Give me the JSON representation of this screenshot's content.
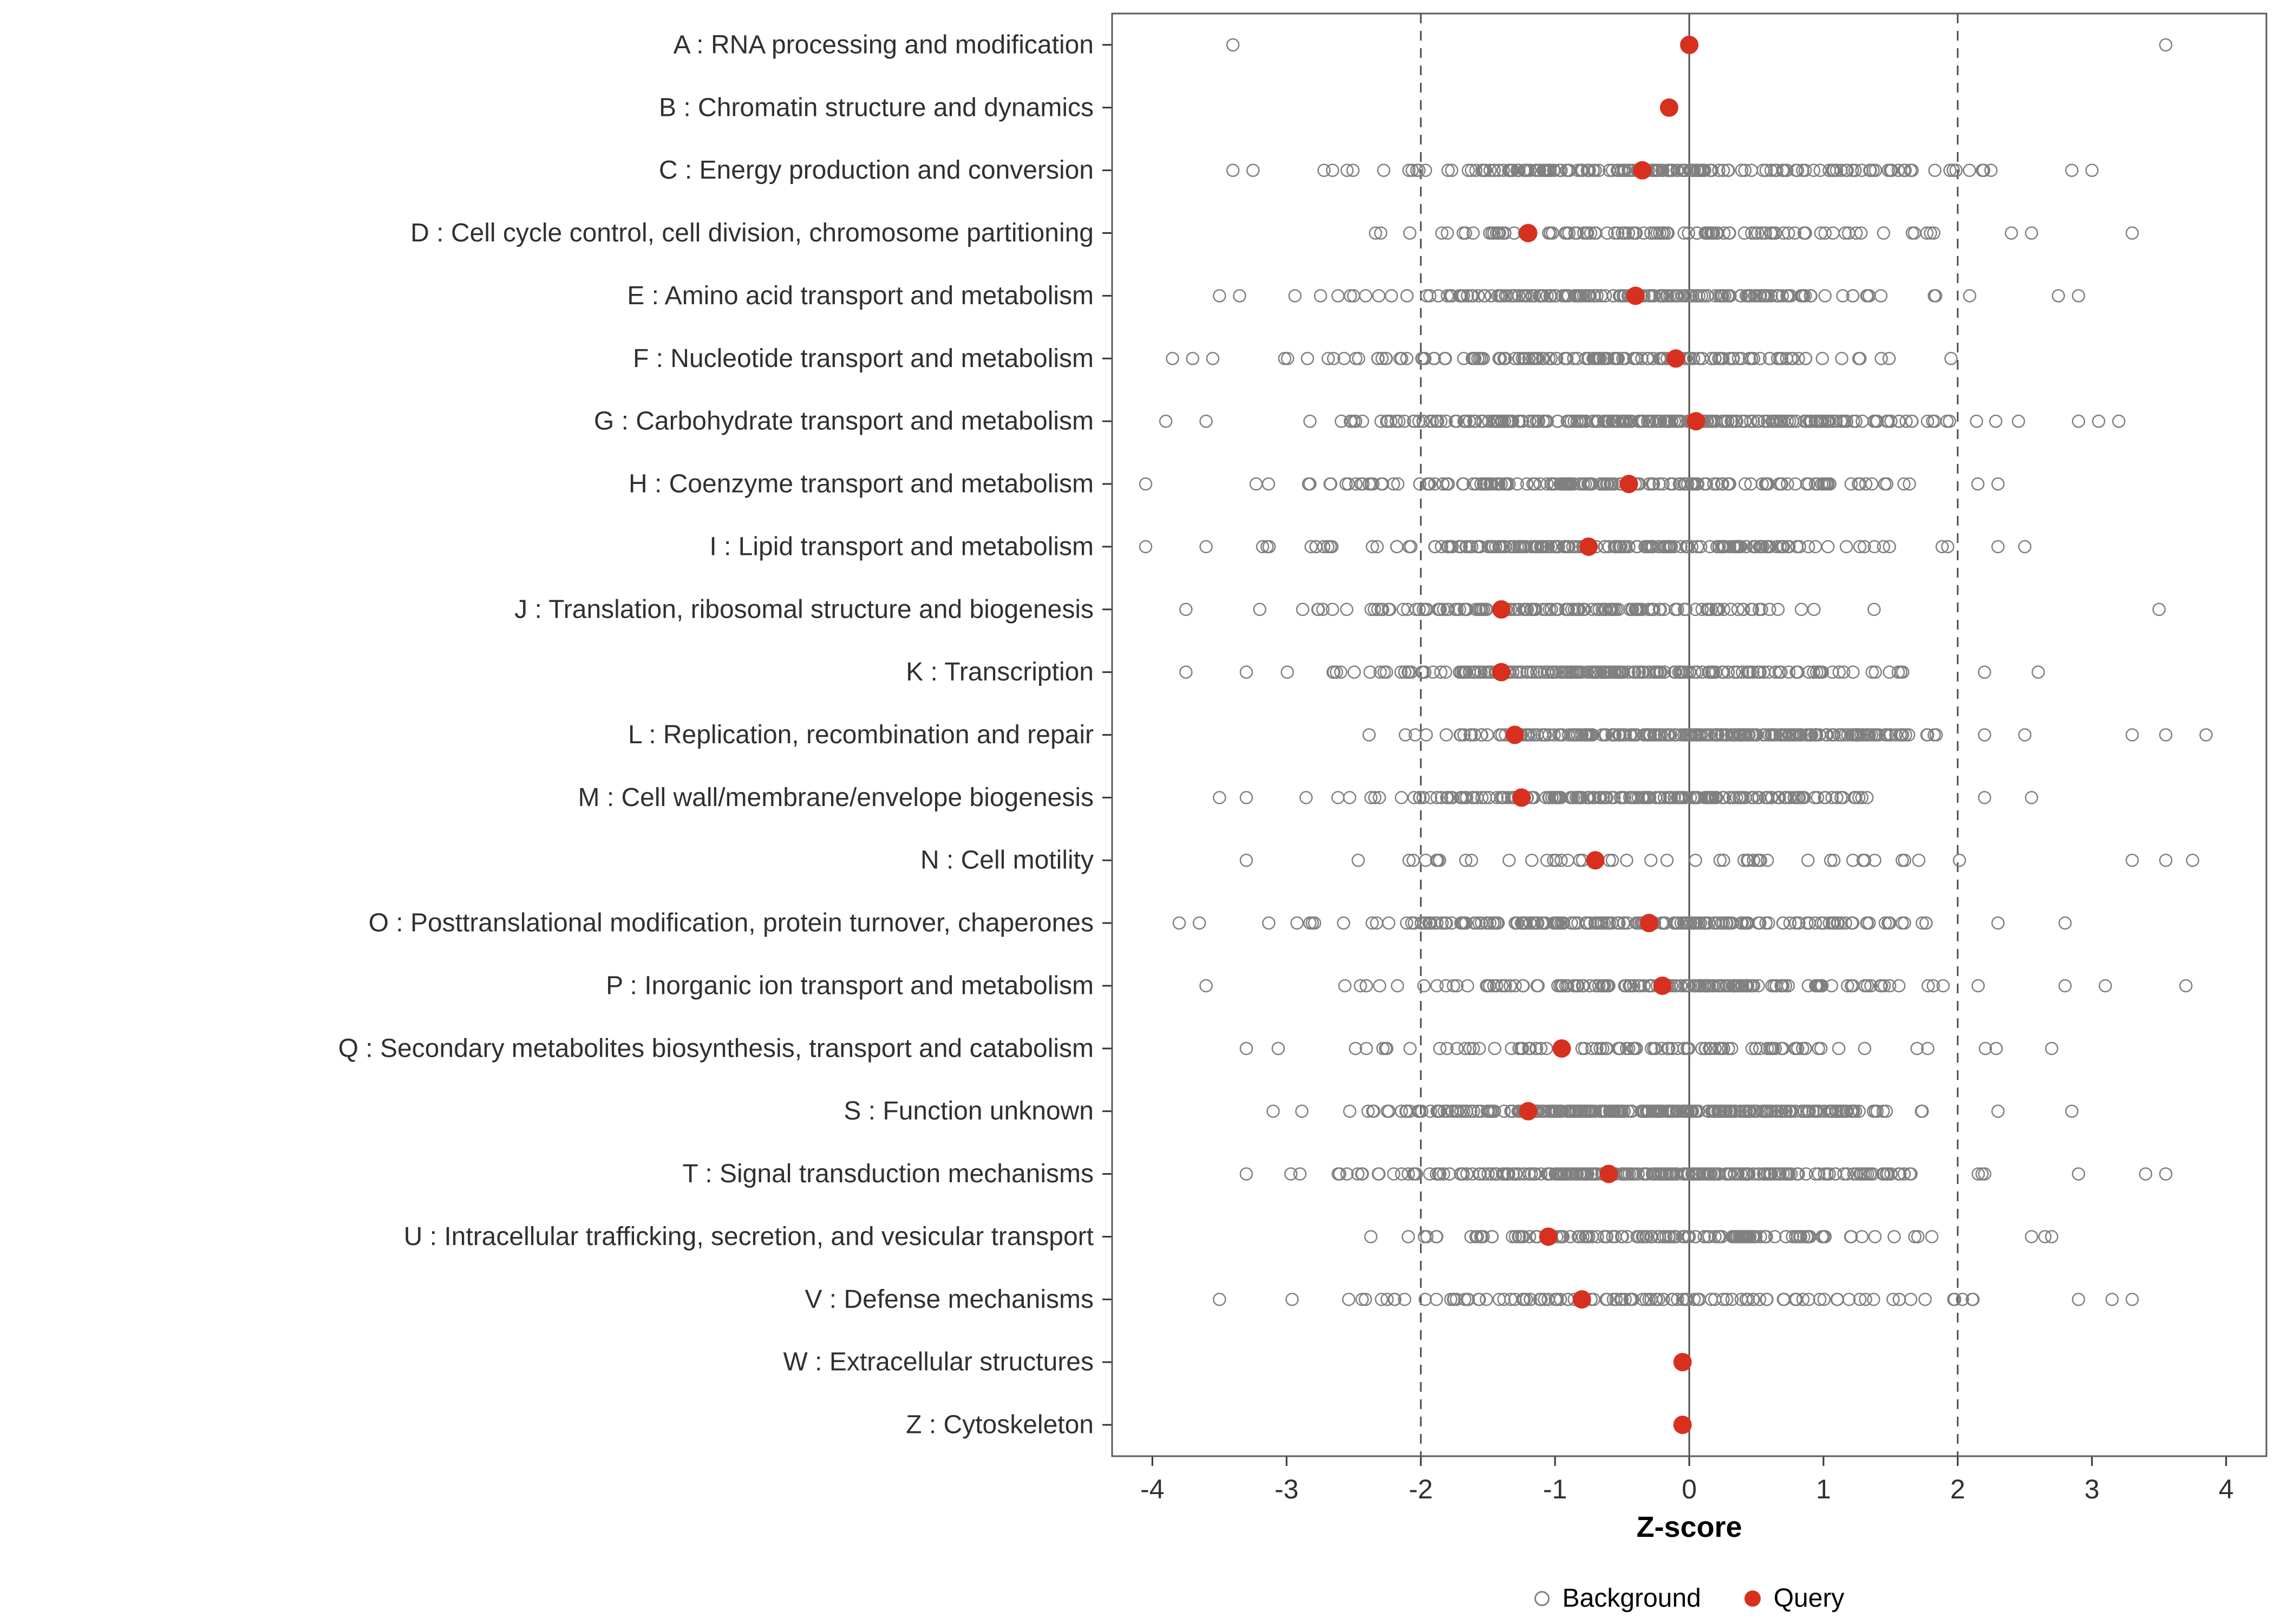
{
  "chart_data": {
    "type": "scatter",
    "title": "",
    "xlabel": "Z-score",
    "ylabel": "",
    "xlim": [
      -4.3,
      4.3
    ],
    "x_ticks": [
      -4,
      -3,
      -2,
      -1,
      0,
      1,
      2,
      3,
      4
    ],
    "grid": false,
    "legend_position": "bottom",
    "reference_lines": {
      "solid": [
        0
      ],
      "dashed": [
        -2,
        2
      ]
    },
    "colors": {
      "background_point": "#808080",
      "query_point": "#d7301f",
      "ref_line": "#4d4d4d",
      "panel_border": "#595959",
      "axis_text": "#303030"
    },
    "legend": {
      "background_label": "Background",
      "query_label": "Query"
    },
    "categories": [
      {
        "label": "A : RNA processing and modification",
        "query": 0.0,
        "bg": {
          "count": 0,
          "mean": 0,
          "sd": 1,
          "clip": [
            -3,
            3
          ],
          "outliers": [
            -3.4,
            3.55
          ]
        }
      },
      {
        "label": "B : Chromatin structure and dynamics",
        "query": -0.15,
        "bg": null
      },
      {
        "label": "C : Energy production and conversion",
        "query": -0.35,
        "bg": {
          "count": 190,
          "mean": -0.35,
          "sd": 1.05,
          "clip": [
            -3.0,
            2.4
          ],
          "outliers": [
            -3.4,
            -3.25,
            2.85,
            3.0
          ]
        }
      },
      {
        "label": "D : Cell cycle control, cell division, chromosome partitioning",
        "query": -1.2,
        "bg": {
          "count": 100,
          "mean": -0.1,
          "sd": 1.1,
          "clip": [
            -2.5,
            2.2
          ],
          "outliers": [
            2.4,
            2.55,
            3.3
          ]
        }
      },
      {
        "label": "E : Amino acid transport and metabolism",
        "query": -0.4,
        "bg": {
          "count": 200,
          "mean": -0.45,
          "sd": 1.1,
          "clip": [
            -3.1,
            2.3
          ],
          "outliers": [
            -3.5,
            -3.35,
            2.75,
            2.9
          ]
        }
      },
      {
        "label": "F : Nucleotide transport and metabolism",
        "query": -0.1,
        "bg": {
          "count": 150,
          "mean": -0.75,
          "sd": 1.05,
          "clip": [
            -3.3,
            1.8
          ],
          "outliers": [
            -3.85,
            -3.7,
            -3.55,
            1.95
          ]
        }
      },
      {
        "label": "G : Carbohydrate transport and metabolism",
        "query": 0.05,
        "bg": {
          "count": 260,
          "mean": -0.35,
          "sd": 1.1,
          "clip": [
            -3.2,
            2.5
          ],
          "outliers": [
            -3.9,
            -3.6,
            2.9,
            3.05,
            3.2
          ]
        }
      },
      {
        "label": "H : Coenzyme transport and metabolism",
        "query": -0.45,
        "bg": {
          "count": 170,
          "mean": -0.6,
          "sd": 1.1,
          "clip": [
            -3.3,
            2.0
          ],
          "outliers": [
            -4.05,
            2.15,
            2.3
          ]
        }
      },
      {
        "label": "I : Lipid transport and metabolism",
        "query": -0.75,
        "bg": {
          "count": 200,
          "mean": -0.6,
          "sd": 1.1,
          "clip": [
            -3.3,
            2.1
          ],
          "outliers": [
            -4.05,
            -3.6,
            2.3,
            2.5
          ]
        }
      },
      {
        "label": "J : Translation, ribosomal structure and biogenesis",
        "query": -1.4,
        "bg": {
          "count": 150,
          "mean": -0.9,
          "sd": 0.95,
          "clip": [
            -2.9,
            1.7
          ],
          "outliers": [
            -3.75,
            -3.2,
            3.5
          ]
        }
      },
      {
        "label": "K : Transcription",
        "query": -1.4,
        "bg": {
          "count": 200,
          "mean": -0.6,
          "sd": 1.0,
          "clip": [
            -3.1,
            1.9
          ],
          "outliers": [
            -3.75,
            -3.3,
            2.2,
            2.6
          ]
        }
      },
      {
        "label": "L : Replication, recombination and repair",
        "query": -1.3,
        "bg": {
          "count": 260,
          "mean": 0.1,
          "sd": 1.0,
          "clip": [
            -2.4,
            1.9
          ],
          "outliers": [
            2.2,
            2.5,
            3.3,
            3.55,
            3.85
          ]
        }
      },
      {
        "label": "M : Cell wall/membrane/envelope biogenesis",
        "query": -1.25,
        "bg": {
          "count": 190,
          "mean": -0.55,
          "sd": 1.05,
          "clip": [
            -3.1,
            1.4
          ],
          "outliers": [
            -3.5,
            -3.3,
            2.2,
            2.55
          ]
        }
      },
      {
        "label": "N : Cell motility",
        "query": -0.7,
        "bg": {
          "count": 46,
          "mean": 0.2,
          "sd": 1.3,
          "clip": [
            -2.6,
            2.3
          ],
          "outliers": [
            -3.3,
            3.3,
            3.55,
            3.75
          ]
        }
      },
      {
        "label": "O : Posttranslational modification, protein turnover, chaperones",
        "query": -0.3,
        "bg": {
          "count": 210,
          "mean": -0.5,
          "sd": 1.15,
          "clip": [
            -3.3,
            2.1
          ],
          "outliers": [
            -3.8,
            -3.65,
            2.3,
            2.8
          ]
        }
      },
      {
        "label": "P : Inorganic ion transport and metabolism",
        "query": -0.2,
        "bg": {
          "count": 160,
          "mean": -0.1,
          "sd": 1.1,
          "clip": [
            -2.9,
            2.2
          ],
          "outliers": [
            -3.6,
            2.8,
            3.1,
            3.7
          ]
        }
      },
      {
        "label": "Q : Secondary metabolites biosynthesis, transport and catabolism",
        "query": -0.95,
        "bg": {
          "count": 95,
          "mean": -0.5,
          "sd": 1.25,
          "clip": [
            -3.1,
            2.4
          ],
          "outliers": [
            -3.3,
            2.7
          ]
        }
      },
      {
        "label": "S : Function unknown",
        "query": -1.2,
        "bg": {
          "count": 320,
          "mean": -0.25,
          "sd": 1.0,
          "clip": [
            -3.0,
            1.9
          ],
          "outliers": [
            -3.1,
            2.3,
            2.85
          ]
        }
      },
      {
        "label": "T : Signal transduction mechanisms",
        "query": -0.6,
        "bg": {
          "count": 260,
          "mean": -0.35,
          "sd": 1.1,
          "clip": [
            -3.1,
            2.3
          ],
          "outliers": [
            -3.3,
            2.9,
            3.4,
            3.55
          ]
        }
      },
      {
        "label": "U : Intracellular trafficking, secretion, and vesicular transport",
        "query": -1.05,
        "bg": {
          "count": 130,
          "mean": -0.2,
          "sd": 0.95,
          "clip": [
            -2.4,
            2.1
          ],
          "outliers": [
            2.55,
            2.65,
            2.7
          ]
        }
      },
      {
        "label": "V : Defense mechanisms",
        "query": -0.8,
        "bg": {
          "count": 115,
          "mean": -0.45,
          "sd": 1.25,
          "clip": [
            -3.2,
            2.2
          ],
          "outliers": [
            -3.5,
            2.9,
            3.15,
            3.3
          ]
        }
      },
      {
        "label": "W : Extracellular structures",
        "query": -0.05,
        "bg": null
      },
      {
        "label": "Z : Cytoskeleton",
        "query": -0.05,
        "bg": null
      }
    ]
  }
}
